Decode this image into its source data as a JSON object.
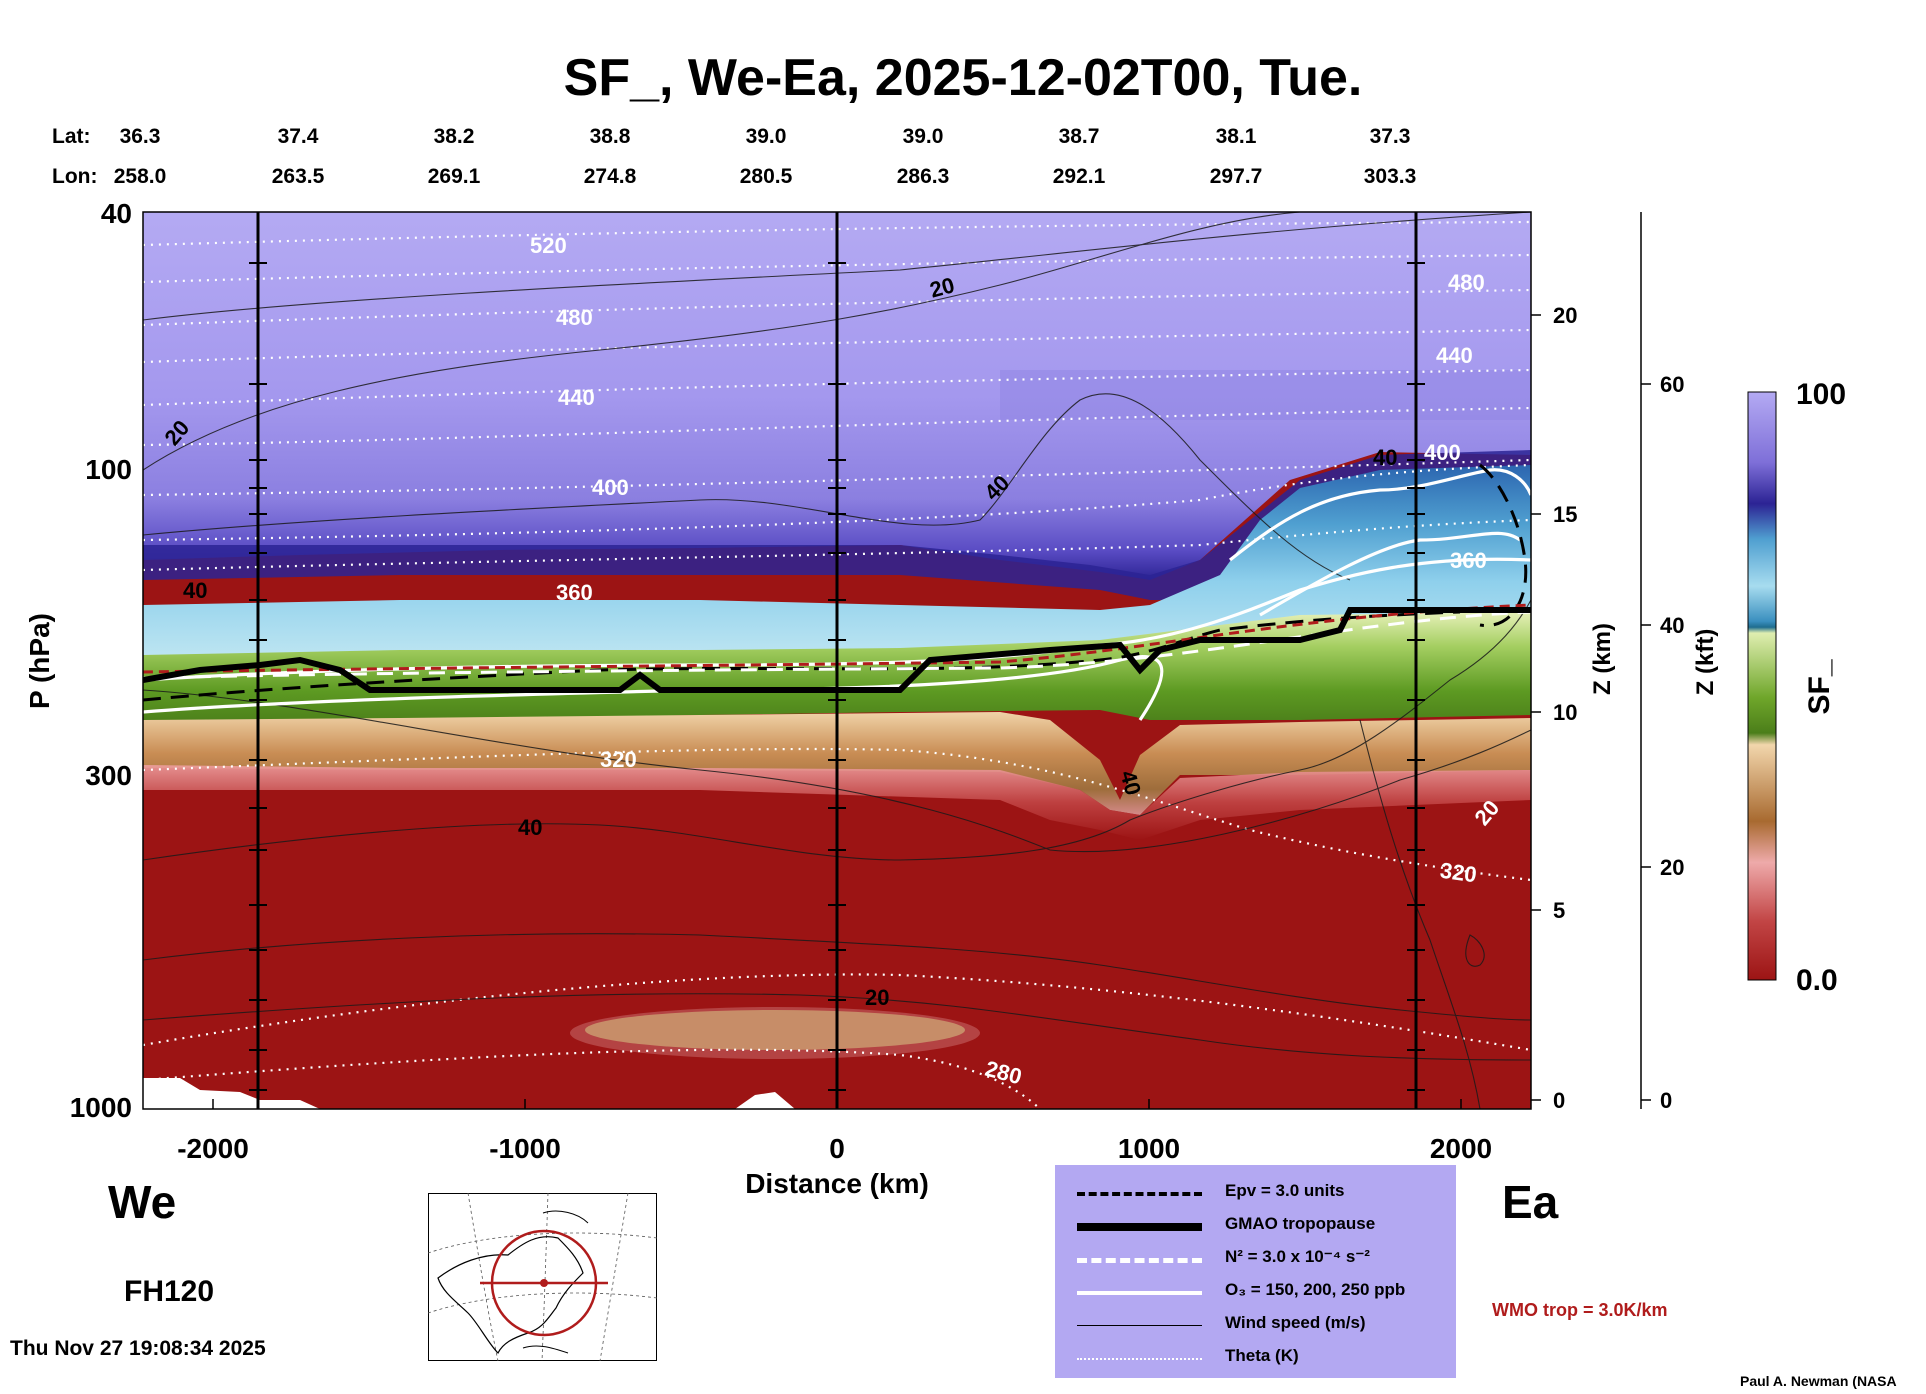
{
  "header": {
    "title": "SF_, We-Ea, 2025-12-02T00, Tue."
  },
  "coords": {
    "lat_label": "Lat:",
    "lon_label": "Lon:",
    "lat": [
      "36.3",
      "37.4",
      "38.2",
      "38.8",
      "39.0",
      "39.0",
      "38.7",
      "38.1",
      "37.3"
    ],
    "lon": [
      "258.0",
      "263.5",
      "269.1",
      "274.8",
      "280.5",
      "286.3",
      "292.1",
      "297.7",
      "303.3"
    ]
  },
  "chart_data": {
    "type": "heatmap",
    "title": "SF_, We-Ea, 2025-12-02T00, Tue.",
    "xlabel": "Distance (km)",
    "ylabel": "P (hPa)",
    "y2label": "Z (km)",
    "y3label": "Z (kft)",
    "colorbar_label": "SF_",
    "xlim": [
      -2220,
      2220
    ],
    "ylim": [
      1000,
      40
    ],
    "y_scale": "log",
    "x_ticks": [
      "-2000",
      "-1000",
      "0",
      "1000",
      "2000"
    ],
    "y_ticks": [
      "40",
      "100",
      "300",
      "1000"
    ],
    "z_km_ticks": [
      "20",
      "15",
      "10",
      "5",
      "0"
    ],
    "z_kft_ticks": [
      "60",
      "40",
      "20",
      "0"
    ],
    "colorbar_range": [
      "0.0",
      "100"
    ],
    "side_labels": {
      "west": "We",
      "east": "Ea"
    },
    "vertical_sections_km": [
      -1850,
      0,
      1850
    ],
    "theta_labels": [
      "520",
      "480",
      "440",
      "400",
      "360",
      "320",
      "280",
      "480",
      "440",
      "400",
      "360",
      "320"
    ],
    "wind_labels": [
      "20",
      "40",
      "40",
      "20",
      "40",
      "20",
      "40",
      "40",
      "20"
    ],
    "legend": [
      {
        "label": "Epv = 3.0 units",
        "style": "dashed-black"
      },
      {
        "label": "GMAO tropopause",
        "style": "thick-black"
      },
      {
        "label": "N² = 3.0 x 10⁻⁴ s⁻²",
        "style": "dashed-white"
      },
      {
        "label": "O₃ = 150, 200, 250 ppb",
        "style": "solid-white"
      },
      {
        "label": "Wind speed (m/s)",
        "style": "thin-black"
      },
      {
        "label": "Theta (K)",
        "style": "dotted-white"
      }
    ]
  },
  "annotations": {
    "wmo": "WMO trop = 3.0K/km",
    "forecast_hour": "FH120",
    "timestamp": "Thu Nov 27 19:08:34 2025",
    "credit": "Paul A. Newman (NASA"
  },
  "colors": {
    "lavender": "#b3a8f2",
    "purple": "#7e6fd8",
    "dark_blue": "#2c2394",
    "cyan": "#5fb2d6",
    "green": "#6fa62a",
    "tan": "#c98d54",
    "red": "#9c1414"
  }
}
